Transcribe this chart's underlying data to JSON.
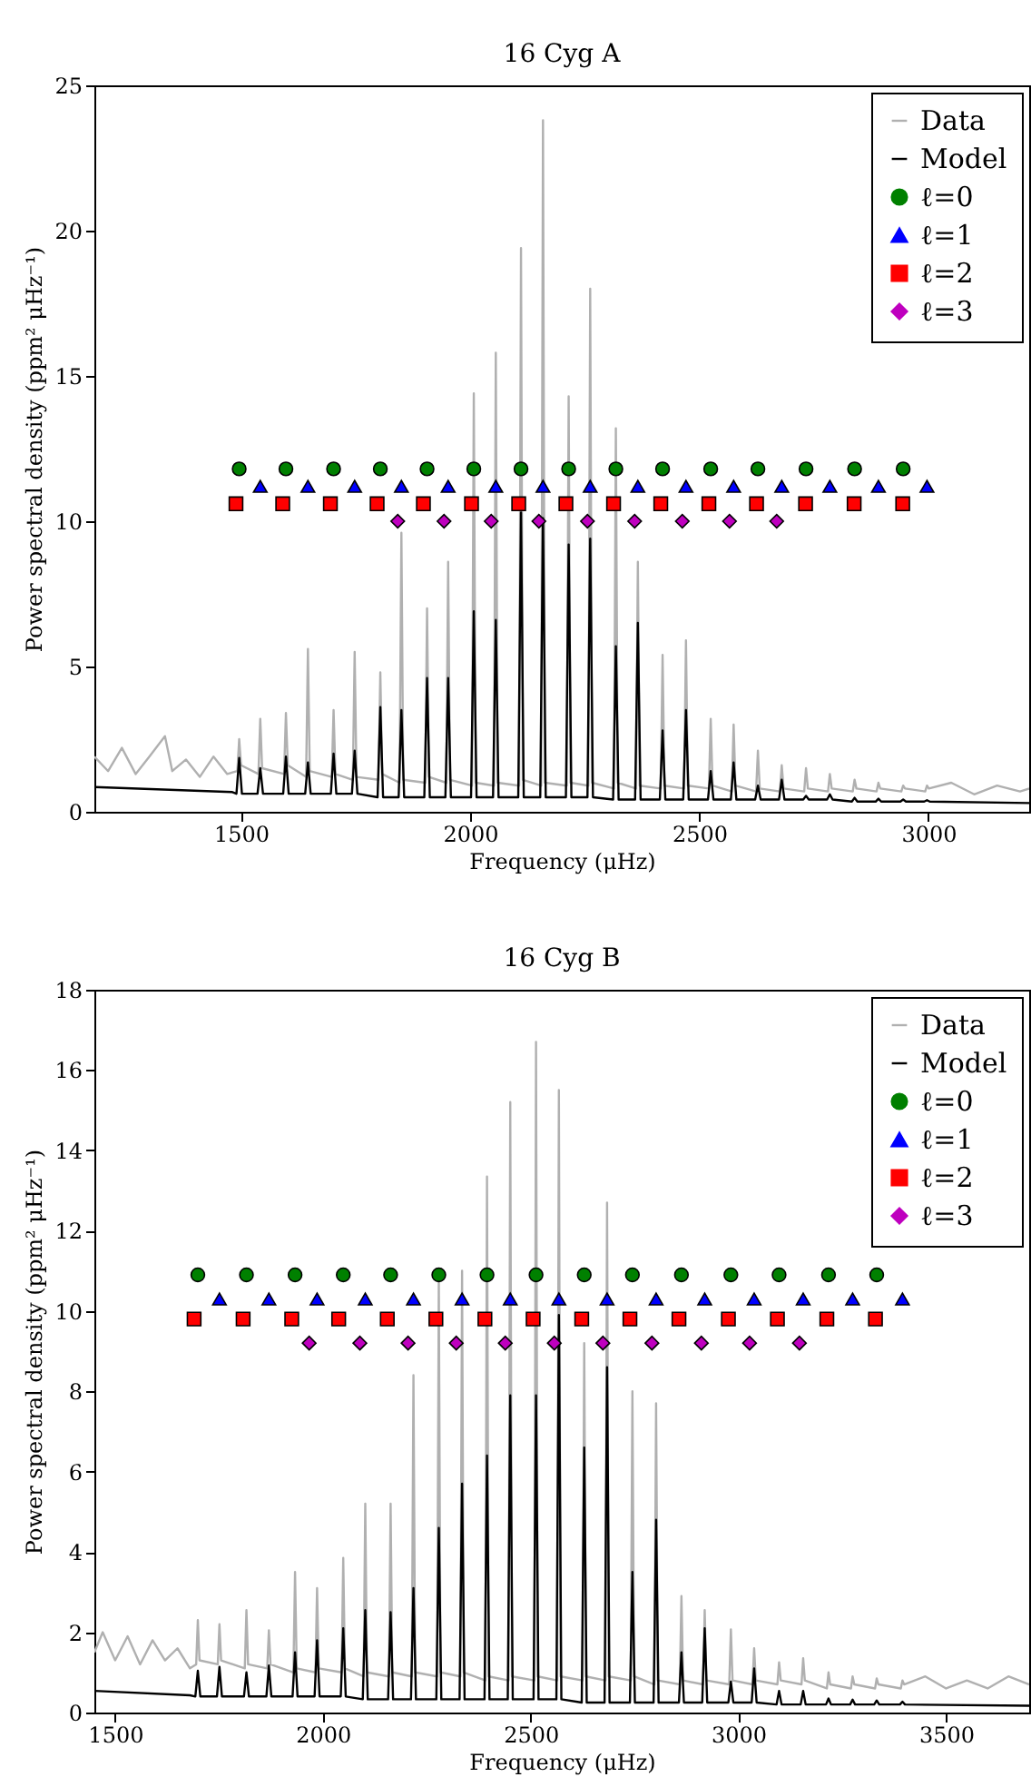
{
  "chart_data": [
    {
      "type": "line",
      "title": "16 Cyg A",
      "xlabel": "Frequency (μHz)",
      "ylabel": "Power spectral density (ppm² μHz⁻¹)",
      "xlim": [
        1180,
        3220
      ],
      "xticks": [
        1500,
        2000,
        2500,
        3000
      ],
      "ylim": [
        0,
        25
      ],
      "yticks": [
        0,
        5,
        10,
        15,
        20,
        25
      ],
      "grid": false,
      "legend": "top right",
      "series": [
        {
          "name": "Data",
          "color": "#b0b0b0",
          "x": [
            1180,
            1210,
            1240,
            1270,
            1300,
            1334,
            1350,
            1380,
            1410,
            1440,
            1470,
            1492,
            1496,
            1500,
            1538,
            1542,
            1546,
            1594,
            1598,
            1602,
            1642,
            1646,
            1650,
            1698,
            1702,
            1706,
            1744,
            1748,
            1752,
            1800,
            1804,
            1808,
            1846,
            1850,
            1854,
            1902,
            1906,
            1910,
            1948,
            1952,
            1956,
            2004,
            2008,
            2012,
            2052,
            2056,
            2060,
            2107,
            2111,
            2115,
            2155,
            2159,
            2163,
            2211,
            2215,
            2219,
            2258,
            2262,
            2266,
            2314,
            2318,
            2322,
            2362,
            2366,
            2370,
            2416,
            2420,
            2424,
            2467,
            2471,
            2475,
            2521,
            2525,
            2529,
            2571,
            2575,
            2579,
            2624,
            2628,
            2632,
            2676,
            2680,
            2684,
            2729,
            2733,
            2737,
            2781,
            2785,
            2789,
            2835,
            2839,
            2843,
            2887,
            2891,
            2895,
            2941,
            2945,
            2949,
            2993,
            2997,
            3001,
            3050,
            3100,
            3150,
            3200,
            3220
          ],
          "values": [
            1.9,
            1.4,
            2.2,
            1.3,
            1.9,
            2.6,
            1.4,
            1.8,
            1.2,
            1.9,
            1.3,
            1.4,
            2.5,
            1.6,
            1.3,
            3.2,
            1.5,
            1.3,
            3.4,
            1.6,
            1.2,
            5.6,
            1.4,
            1.2,
            3.5,
            1.3,
            1.1,
            5.5,
            1.2,
            1.1,
            4.8,
            1.3,
            1.0,
            9.6,
            1.1,
            1.0,
            7.0,
            1.2,
            1.0,
            8.6,
            1.1,
            0.9,
            14.4,
            1.0,
            0.9,
            15.8,
            1.0,
            0.9,
            19.4,
            1.1,
            0.9,
            23.8,
            1.0,
            0.9,
            14.3,
            1.0,
            0.9,
            18.0,
            1.0,
            0.8,
            13.2,
            1.0,
            0.8,
            8.6,
            0.9,
            0.8,
            5.4,
            0.9,
            0.8,
            5.9,
            0.9,
            0.8,
            3.2,
            0.9,
            0.7,
            3.0,
            0.9,
            0.7,
            2.1,
            0.8,
            0.7,
            1.6,
            0.8,
            0.7,
            1.5,
            0.8,
            0.7,
            1.3,
            0.8,
            0.7,
            1.1,
            0.8,
            0.7,
            1.0,
            0.8,
            0.7,
            0.9,
            0.8,
            0.7,
            0.9,
            0.8,
            1.0,
            0.6,
            0.9,
            0.7,
            0.8
          ]
        },
        {
          "name": "Model",
          "color": "#000000",
          "x": [
            1180,
            1480,
            1490,
            1496,
            1502,
            1536,
            1542,
            1548,
            1592,
            1598,
            1604,
            1640,
            1646,
            1652,
            1696,
            1702,
            1708,
            1742,
            1748,
            1754,
            1798,
            1804,
            1810,
            1844,
            1850,
            1856,
            1900,
            1906,
            1912,
            1946,
            1952,
            1958,
            2002,
            2008,
            2014,
            2050,
            2056,
            2062,
            2105,
            2111,
            2117,
            2153,
            2159,
            2165,
            2209,
            2215,
            2221,
            2256,
            2262,
            2268,
            2312,
            2318,
            2324,
            2360,
            2366,
            2372,
            2414,
            2420,
            2426,
            2465,
            2471,
            2477,
            2519,
            2525,
            2531,
            2569,
            2575,
            2581,
            2622,
            2628,
            2634,
            2674,
            2680,
            2686,
            2727,
            2733,
            2739,
            2779,
            2785,
            2791,
            2833,
            2839,
            2845,
            2885,
            2891,
            2897,
            2939,
            2945,
            2951,
            2991,
            2997,
            3003,
            3220
          ],
          "values": [
            0.85,
            0.68,
            0.62,
            1.85,
            0.62,
            0.62,
            1.5,
            0.62,
            0.62,
            1.9,
            0.62,
            0.62,
            1.7,
            0.62,
            0.62,
            2.0,
            0.62,
            0.62,
            2.1,
            0.62,
            0.5,
            3.6,
            0.5,
            0.5,
            3.5,
            0.5,
            0.5,
            4.6,
            0.5,
            0.5,
            4.6,
            0.5,
            0.5,
            6.9,
            0.5,
            0.5,
            6.6,
            0.5,
            0.5,
            10.3,
            0.5,
            0.5,
            10.1,
            0.5,
            0.5,
            9.2,
            0.5,
            0.5,
            9.4,
            0.5,
            0.42,
            5.7,
            0.42,
            0.42,
            6.5,
            0.42,
            0.42,
            2.8,
            0.42,
            0.42,
            3.5,
            0.42,
            0.42,
            1.4,
            0.42,
            0.42,
            1.7,
            0.42,
            0.42,
            0.9,
            0.42,
            0.42,
            1.1,
            0.42,
            0.42,
            0.55,
            0.42,
            0.42,
            0.6,
            0.42,
            0.35,
            0.48,
            0.35,
            0.35,
            0.45,
            0.35,
            0.35,
            0.42,
            0.35,
            0.35,
            0.4,
            0.35,
            0.3
          ]
        },
        {
          "name": "ℓ=0",
          "type": "scatter",
          "marker": "circle",
          "color": "#008000",
          "x": [
            1496,
            1598,
            1702,
            1804,
            1906,
            2008,
            2111,
            2215,
            2318,
            2420,
            2525,
            2628,
            2733,
            2839,
            2945
          ],
          "values": [
            11.8,
            11.8,
            11.8,
            11.8,
            11.8,
            11.8,
            11.8,
            11.8,
            11.8,
            11.8,
            11.8,
            11.8,
            11.8,
            11.8,
            11.8
          ]
        },
        {
          "name": "ℓ=1",
          "type": "scatter",
          "marker": "triangle",
          "color": "#0000ff",
          "x": [
            1542,
            1646,
            1748,
            1850,
            1952,
            2056,
            2159,
            2262,
            2366,
            2471,
            2575,
            2680,
            2785,
            2891,
            2997
          ],
          "values": [
            11.2,
            11.2,
            11.2,
            11.2,
            11.2,
            11.2,
            11.2,
            11.2,
            11.2,
            11.2,
            11.2,
            11.2,
            11.2,
            11.2,
            11.2
          ]
        },
        {
          "name": "ℓ=2",
          "type": "scatter",
          "marker": "square",
          "color": "#ff0000",
          "x": [
            1489,
            1591,
            1695,
            1797,
            1898,
            2003,
            2106,
            2209,
            2313,
            2416,
            2521,
            2625,
            2732,
            2838,
            2944
          ],
          "values": [
            10.6,
            10.6,
            10.6,
            10.6,
            10.6,
            10.6,
            10.6,
            10.6,
            10.6,
            10.6,
            10.6,
            10.6,
            10.6,
            10.6,
            10.6
          ]
        },
        {
          "name": "ℓ=3",
          "type": "scatter",
          "marker": "diamond",
          "color": "#bf00bf",
          "x": [
            1842,
            1943,
            2046,
            2150,
            2256,
            2359,
            2463,
            2566,
            2669
          ],
          "values": [
            10.0,
            10.0,
            10.0,
            10.0,
            10.0,
            10.0,
            10.0,
            10.0,
            10.0
          ]
        }
      ]
    },
    {
      "type": "line",
      "title": "16 Cyg B",
      "xlabel": "Frequency (μHz)",
      "ylabel": "Power spectral density (ppm² μHz⁻¹)",
      "xlim": [
        1450,
        3700
      ],
      "xticks": [
        1500,
        2000,
        2500,
        3000,
        3500
      ],
      "ylim": [
        0,
        18
      ],
      "yticks": [
        0,
        2,
        4,
        6,
        8,
        10,
        12,
        14,
        16,
        18
      ],
      "grid": false,
      "legend": "top right",
      "series": [
        {
          "name": "Data",
          "color": "#b0b0b0",
          "x": [
            1450,
            1470,
            1500,
            1530,
            1560,
            1590,
            1620,
            1650,
            1680,
            1695,
            1699,
            1703,
            1747,
            1751,
            1755,
            1812,
            1816,
            1820,
            1866,
            1870,
            1874,
            1929,
            1933,
            1937,
            1982,
            1986,
            1990,
            2045,
            2049,
            2053,
            2098,
            2102,
            2106,
            2159,
            2163,
            2167,
            2214,
            2218,
            2222,
            2275,
            2279,
            2283,
            2331,
            2335,
            2339,
            2391,
            2395,
            2399,
            2447,
            2451,
            2455,
            2509,
            2513,
            2517,
            2564,
            2568,
            2572,
            2625,
            2629,
            2633,
            2680,
            2684,
            2688,
            2741,
            2745,
            2749,
            2798,
            2802,
            2806,
            2859,
            2863,
            2867,
            2915,
            2919,
            2923,
            2978,
            2982,
            2986,
            3034,
            3038,
            3042,
            3094,
            3098,
            3102,
            3152,
            3156,
            3160,
            3213,
            3217,
            3221,
            3271,
            3275,
            3279,
            3329,
            3333,
            3337,
            3391,
            3395,
            3399,
            3450,
            3500,
            3550,
            3600,
            3650,
            3700
          ],
          "values": [
            1.5,
            2.0,
            1.3,
            1.9,
            1.2,
            1.8,
            1.3,
            1.6,
            1.1,
            1.2,
            2.3,
            1.3,
            1.2,
            2.2,
            1.3,
            1.1,
            2.55,
            1.2,
            1.1,
            2.05,
            1.2,
            1.0,
            3.5,
            1.1,
            1.0,
            3.1,
            1.1,
            1.0,
            3.85,
            1.1,
            0.9,
            5.2,
            1.0,
            0.9,
            5.2,
            1.0,
            0.9,
            8.4,
            1.0,
            0.9,
            10.8,
            1.0,
            0.9,
            11.0,
            1.0,
            0.8,
            13.35,
            0.9,
            0.8,
            15.2,
            0.9,
            0.8,
            16.7,
            0.9,
            0.8,
            15.5,
            0.9,
            0.8,
            9.2,
            0.9,
            0.8,
            12.7,
            0.9,
            0.8,
            8.0,
            0.9,
            0.7,
            7.7,
            0.8,
            0.7,
            2.9,
            0.8,
            0.7,
            2.55,
            0.8,
            0.7,
            2.07,
            0.8,
            0.7,
            1.6,
            0.8,
            0.7,
            1.25,
            0.8,
            0.7,
            1.35,
            0.8,
            0.6,
            1.0,
            0.7,
            0.6,
            0.9,
            0.7,
            0.6,
            0.85,
            0.7,
            0.6,
            0.8,
            0.7,
            0.9,
            0.6,
            0.8,
            0.6,
            0.9,
            0.7
          ]
        },
        {
          "name": "Model",
          "color": "#000000",
          "x": [
            1450,
            1680,
            1693,
            1699,
            1705,
            1745,
            1751,
            1757,
            1810,
            1816,
            1822,
            1864,
            1870,
            1876,
            1927,
            1933,
            1939,
            1980,
            1986,
            1992,
            2043,
            2049,
            2055,
            2096,
            2102,
            2108,
            2157,
            2163,
            2169,
            2212,
            2218,
            2224,
            2273,
            2279,
            2285,
            2329,
            2335,
            2341,
            2389,
            2395,
            2401,
            2445,
            2451,
            2457,
            2507,
            2513,
            2519,
            2562,
            2568,
            2574,
            2623,
            2629,
            2635,
            2678,
            2684,
            2690,
            2739,
            2745,
            2751,
            2796,
            2802,
            2808,
            2857,
            2863,
            2869,
            2913,
            2919,
            2925,
            2976,
            2982,
            2988,
            3032,
            3038,
            3044,
            3092,
            3098,
            3104,
            3150,
            3156,
            3162,
            3211,
            3217,
            3223,
            3269,
            3275,
            3281,
            3327,
            3333,
            3339,
            3389,
            3395,
            3401,
            3700
          ],
          "values": [
            0.54,
            0.43,
            0.4,
            1.04,
            0.4,
            0.4,
            1.14,
            0.4,
            0.4,
            1.0,
            0.4,
            0.4,
            1.17,
            0.4,
            0.4,
            1.5,
            0.4,
            0.4,
            1.8,
            0.4,
            0.4,
            2.1,
            0.4,
            0.33,
            2.55,
            0.33,
            0.33,
            2.5,
            0.33,
            0.33,
            3.1,
            0.33,
            0.33,
            4.6,
            0.33,
            0.33,
            5.7,
            0.33,
            0.33,
            6.4,
            0.33,
            0.33,
            7.9,
            0.33,
            0.33,
            7.9,
            0.33,
            0.33,
            9.9,
            0.33,
            0.25,
            6.6,
            0.25,
            0.25,
            8.6,
            0.25,
            0.25,
            3.5,
            0.25,
            0.25,
            4.8,
            0.25,
            0.25,
            1.5,
            0.25,
            0.25,
            2.1,
            0.25,
            0.25,
            0.77,
            0.25,
            0.25,
            1.1,
            0.25,
            0.2,
            0.54,
            0.2,
            0.2,
            0.54,
            0.2,
            0.2,
            0.35,
            0.2,
            0.2,
            0.32,
            0.2,
            0.2,
            0.3,
            0.2,
            0.2,
            0.27,
            0.2,
            0.17
          ]
        },
        {
          "name": "ℓ=0",
          "type": "scatter",
          "marker": "circle",
          "color": "#008000",
          "x": [
            1699,
            1816,
            1933,
            2049,
            2163,
            2279,
            2395,
            2513,
            2629,
            2745,
            2863,
            2982,
            3098,
            3217,
            3333
          ],
          "values": [
            10.9,
            10.9,
            10.9,
            10.9,
            10.9,
            10.9,
            10.9,
            10.9,
            10.9,
            10.9,
            10.9,
            10.9,
            10.9,
            10.9,
            10.9
          ]
        },
        {
          "name": "ℓ=1",
          "type": "scatter",
          "marker": "triangle",
          "color": "#0000ff",
          "x": [
            1751,
            1870,
            1986,
            2102,
            2218,
            2335,
            2451,
            2568,
            2684,
            2802,
            2919,
            3038,
            3156,
            3275,
            3395
          ],
          "values": [
            10.3,
            10.3,
            10.3,
            10.3,
            10.3,
            10.3,
            10.3,
            10.3,
            10.3,
            10.3,
            10.3,
            10.3,
            10.3,
            10.3,
            10.3
          ]
        },
        {
          "name": "ℓ=2",
          "type": "scatter",
          "marker": "square",
          "color": "#ff0000",
          "x": [
            1690,
            1808,
            1925,
            2038,
            2155,
            2272,
            2390,
            2506,
            2623,
            2739,
            2857,
            2976,
            3094,
            3213,
            3330
          ],
          "values": [
            9.8,
            9.8,
            9.8,
            9.8,
            9.8,
            9.8,
            9.8,
            9.8,
            9.8,
            9.8,
            9.8,
            9.8,
            9.8,
            9.8,
            9.8
          ]
        },
        {
          "name": "ℓ=3",
          "type": "scatter",
          "marker": "diamond",
          "color": "#bf00bf",
          "x": [
            1967,
            2089,
            2205,
            2321,
            2439,
            2557,
            2674,
            2792,
            2911,
            3027,
            3147
          ],
          "values": [
            9.2,
            9.2,
            9.2,
            9.2,
            9.2,
            9.2,
            9.2,
            9.2,
            9.2,
            9.2,
            9.2
          ]
        }
      ]
    }
  ]
}
